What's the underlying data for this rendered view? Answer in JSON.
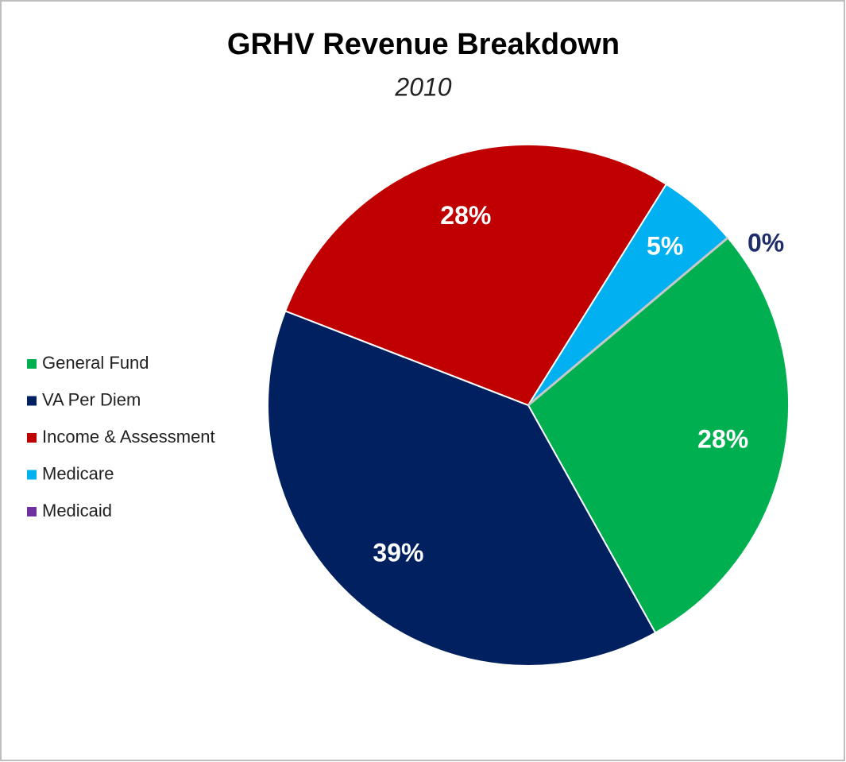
{
  "chart_data": {
    "type": "pie",
    "title": "GRHV Revenue Breakdown",
    "subtitle": "2010",
    "categories": [
      "General Fund",
      "VA Per Diem",
      "Income & Assessment",
      "Medicare",
      "Medicaid"
    ],
    "values": [
      28,
      39,
      28,
      5,
      0
    ],
    "value_labels": [
      "28%",
      "39%",
      "28%",
      "5%",
      "0%"
    ],
    "colors": [
      "#00b050",
      "#002060",
      "#c00000",
      "#00b0f0",
      "#7030a0"
    ],
    "legend": "left"
  }
}
